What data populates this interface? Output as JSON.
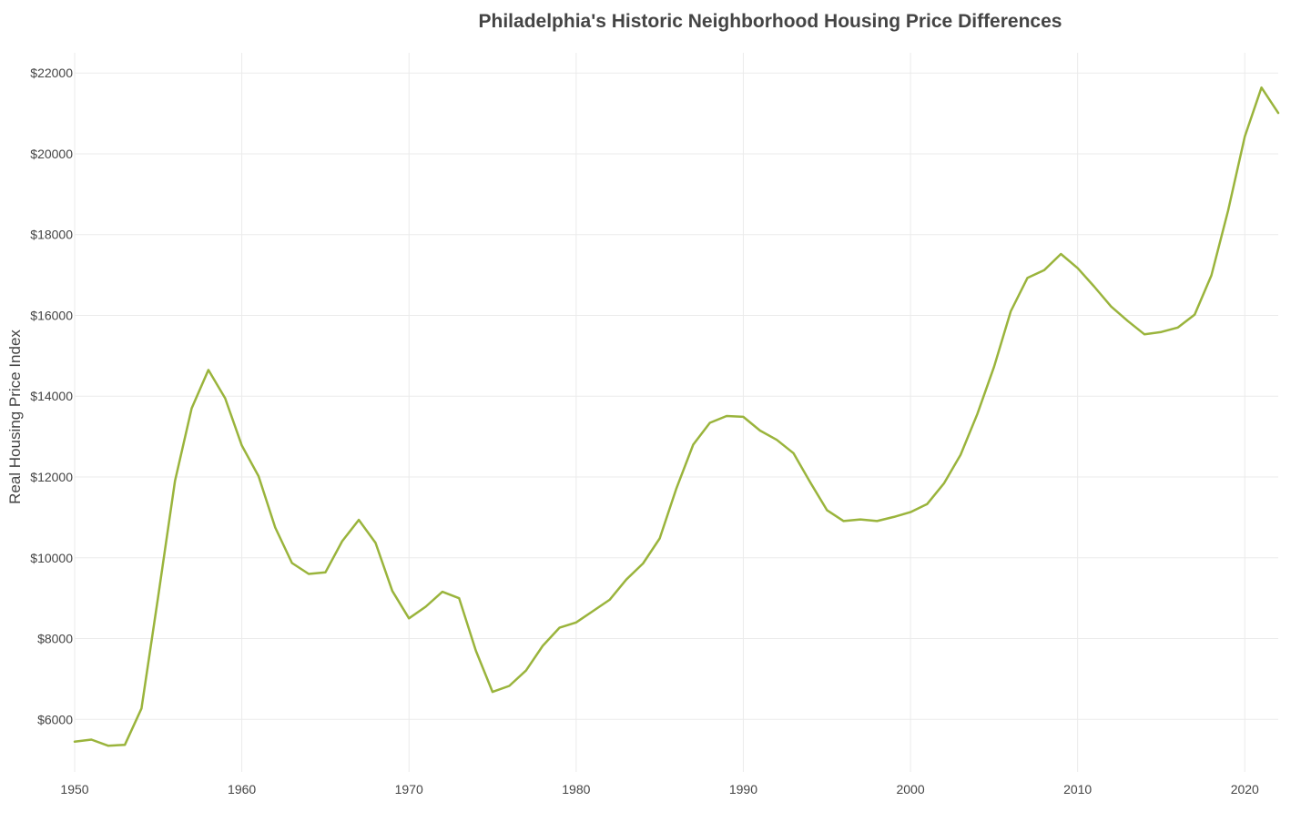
{
  "chart_data": {
    "type": "line",
    "title": "Philadelphia's Historic Neighborhood Housing Price Differences",
    "xlabel": "",
    "ylabel": "Real Housing Price Index",
    "xlim": [
      1950,
      2022
    ],
    "ylim": [
      4700,
      22500
    ],
    "x_ticks": [
      "1950",
      "1960",
      "1970",
      "1980",
      "1990",
      "2000",
      "2010",
      "2020"
    ],
    "y_ticks": [
      "$6000",
      "$8000",
      "$10000",
      "$12000",
      "$14000",
      "$16000",
      "$18000",
      "$20000",
      "$22000"
    ],
    "grid": true,
    "legend": "none",
    "series": [
      {
        "color": "#9ab43c",
        "x": [
          1950,
          1951,
          1952,
          1953,
          1954,
          1955,
          1956,
          1957,
          1958,
          1959,
          1960,
          1961,
          1962,
          1963,
          1964,
          1965,
          1966,
          1967,
          1968,
          1969,
          1970,
          1971,
          1972,
          1973,
          1974,
          1975,
          1976,
          1977,
          1978,
          1979,
          1980,
          1981,
          1982,
          1983,
          1984,
          1985,
          1986,
          1987,
          1988,
          1989,
          1990,
          1991,
          1992,
          1993,
          1994,
          1995,
          1996,
          1997,
          1998,
          1999,
          2000,
          2001,
          2002,
          2003,
          2004,
          2005,
          2006,
          2007,
          2008,
          2009,
          2010,
          2011,
          2012,
          2013,
          2014,
          2015,
          2016,
          2017,
          2018,
          2019,
          2020,
          2021,
          2022
        ],
        "values": [
          5450,
          5500,
          5350,
          5370,
          6270,
          9050,
          11900,
          13700,
          14650,
          13950,
          12780,
          12020,
          10750,
          9870,
          9600,
          9640,
          10410,
          10940,
          10370,
          9180,
          8500,
          8790,
          9160,
          9000,
          7700,
          6680,
          6830,
          7210,
          7820,
          8270,
          8400,
          8680,
          8960,
          9460,
          9860,
          10480,
          11720,
          12800,
          13340,
          13510,
          13490,
          13150,
          12920,
          12590,
          11870,
          11180,
          10910,
          10950,
          10910,
          11010,
          11130,
          11330,
          11840,
          12550,
          13560,
          14730,
          16100,
          16930,
          17120,
          17520,
          17170,
          16710,
          16220,
          15860,
          15530,
          15590,
          15700,
          16020,
          16990,
          18590,
          20430,
          21640,
          21010
        ]
      }
    ]
  }
}
